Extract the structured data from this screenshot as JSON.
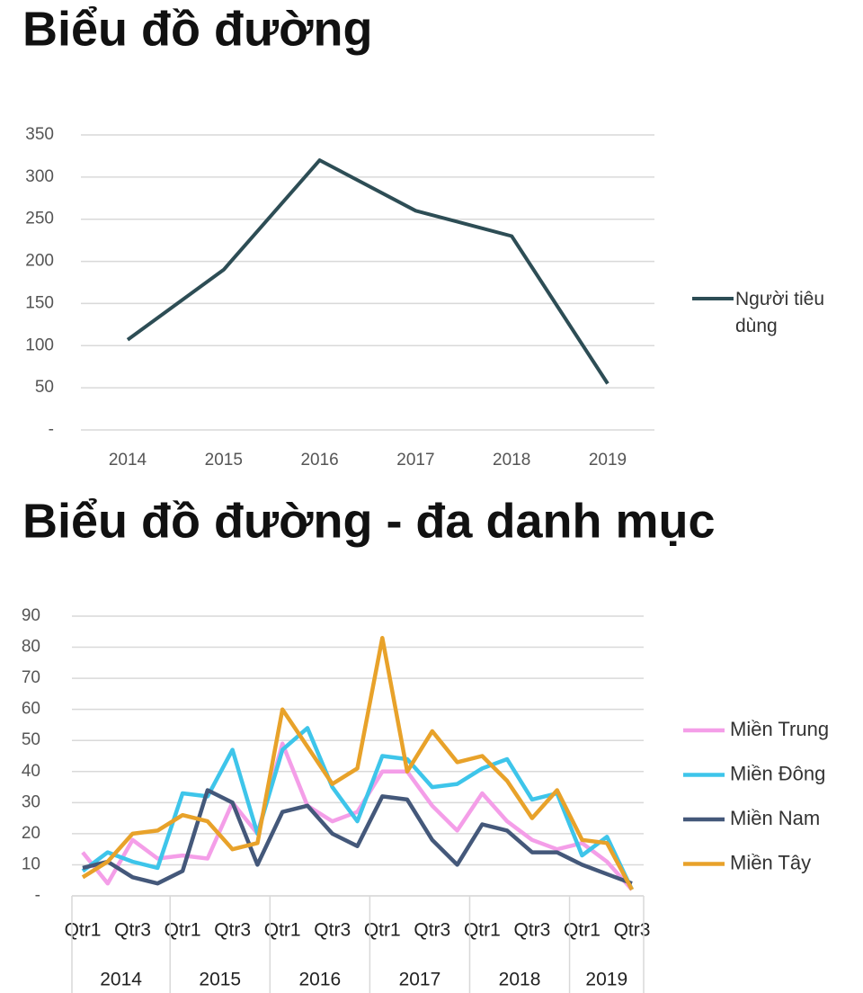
{
  "chart_data": [
    {
      "type": "line",
      "title": "Biểu đồ đường",
      "categories": [
        "2014",
        "2015",
        "2016",
        "2017",
        "2018",
        "2019"
      ],
      "series": [
        {
          "name": "Người tiêu dùng",
          "color": "#2d4d55",
          "values": [
            107,
            190,
            320,
            260,
            230,
            55
          ]
        }
      ],
      "ylim": [
        0,
        350
      ],
      "yticks": [
        {
          "value": 0,
          "label": "-"
        },
        50,
        100,
        150,
        200,
        250,
        300,
        350
      ],
      "grid": true,
      "legend": "right"
    },
    {
      "type": "line",
      "title": "Biểu đồ đường - đa danh mục",
      "categories": [
        "Qtr1",
        null,
        "Qtr3",
        null,
        "Qtr1",
        null,
        "Qtr3",
        null,
        "Qtr1",
        null,
        "Qtr3",
        null,
        "Qtr1",
        null,
        "Qtr3",
        null,
        "Qtr1",
        null,
        "Qtr3",
        null,
        "Qtr1",
        null,
        "Qtr3"
      ],
      "groups": [
        "2014",
        "2015",
        "2016",
        "2017",
        "2018",
        "2019"
      ],
      "series": [
        {
          "name": "Miền Trung",
          "color": "#f49ee8",
          "values": [
            14,
            4,
            18,
            12,
            13,
            12,
            30,
            20,
            49,
            29,
            24,
            27,
            40,
            40,
            29,
            21,
            33,
            24,
            18,
            15,
            17,
            11,
            2
          ]
        },
        {
          "name": "Miền Đông",
          "color": "#3ec5ea",
          "values": [
            8,
            14,
            11,
            9,
            33,
            32,
            47,
            20,
            47,
            54,
            35,
            24,
            45,
            44,
            35,
            36,
            41,
            44,
            31,
            33,
            13,
            19,
            2
          ]
        },
        {
          "name": "Miền Nam",
          "color": "#44587a",
          "values": [
            9,
            11,
            6,
            4,
            8,
            34,
            30,
            10,
            27,
            29,
            20,
            16,
            32,
            31,
            18,
            10,
            23,
            21,
            14,
            14,
            10,
            7,
            4
          ]
        },
        {
          "name": "Miền Tây",
          "color": "#e8a22a",
          "values": [
            6,
            11,
            20,
            21,
            26,
            24,
            15,
            17,
            60,
            48,
            36,
            41,
            83,
            40,
            53,
            43,
            45,
            37,
            25,
            34,
            18,
            17,
            2
          ]
        }
      ],
      "ylim": [
        0,
        90
      ],
      "yticks": [
        {
          "value": 0,
          "label": "-"
        },
        10,
        20,
        30,
        40,
        50,
        60,
        70,
        80,
        90
      ],
      "grid": true,
      "legend": "right"
    }
  ]
}
